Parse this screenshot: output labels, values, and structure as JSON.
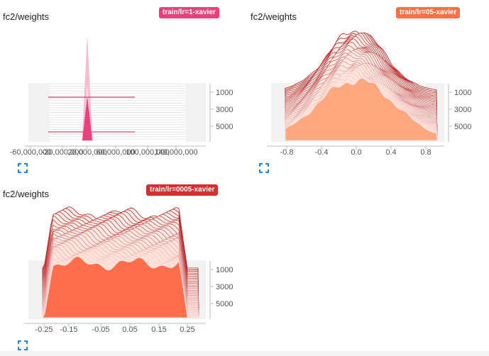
{
  "cards": [
    {
      "title": "fc2/weights",
      "run": "train/lr=1-xavier",
      "run_color": "#ec407a",
      "fill_light": "#fde0ec",
      "fill_dark": "#ec407a",
      "line_color": "#c2185b",
      "step_ticks": [
        "1000",
        "3000",
        "5000"
      ],
      "x_ticks": [
        "-60,000,000",
        "-20,000,000",
        "20,000,000",
        "60,000,000",
        "100,000,000",
        "140,000,000"
      ]
    },
    {
      "title": "fc2/weights",
      "run": "train/lr=05-xavier",
      "run_color": "#ff7043",
      "fill_light": "#ffe3d9",
      "fill_dark": "#ffa77f",
      "line_color": "#b71c1c",
      "step_ticks": [
        "1000",
        "3000",
        "5000"
      ],
      "x_ticks": [
        "-0.8",
        "-0.4",
        "0.0",
        "0.4",
        "0.8"
      ]
    },
    {
      "title": "fc2/weights",
      "run": "train/lr=0005-xavier",
      "run_color": "#d32f2f",
      "fill_light": "#ffe0d6",
      "fill_dark": "#ff6e4a",
      "line_color": "#b71c1c",
      "step_ticks": [
        "1000",
        "3000",
        "5000"
      ],
      "x_ticks": [
        "-0.25",
        "-0.15",
        "-0.05",
        "0.05",
        "0.15",
        "0.25"
      ]
    }
  ]
}
